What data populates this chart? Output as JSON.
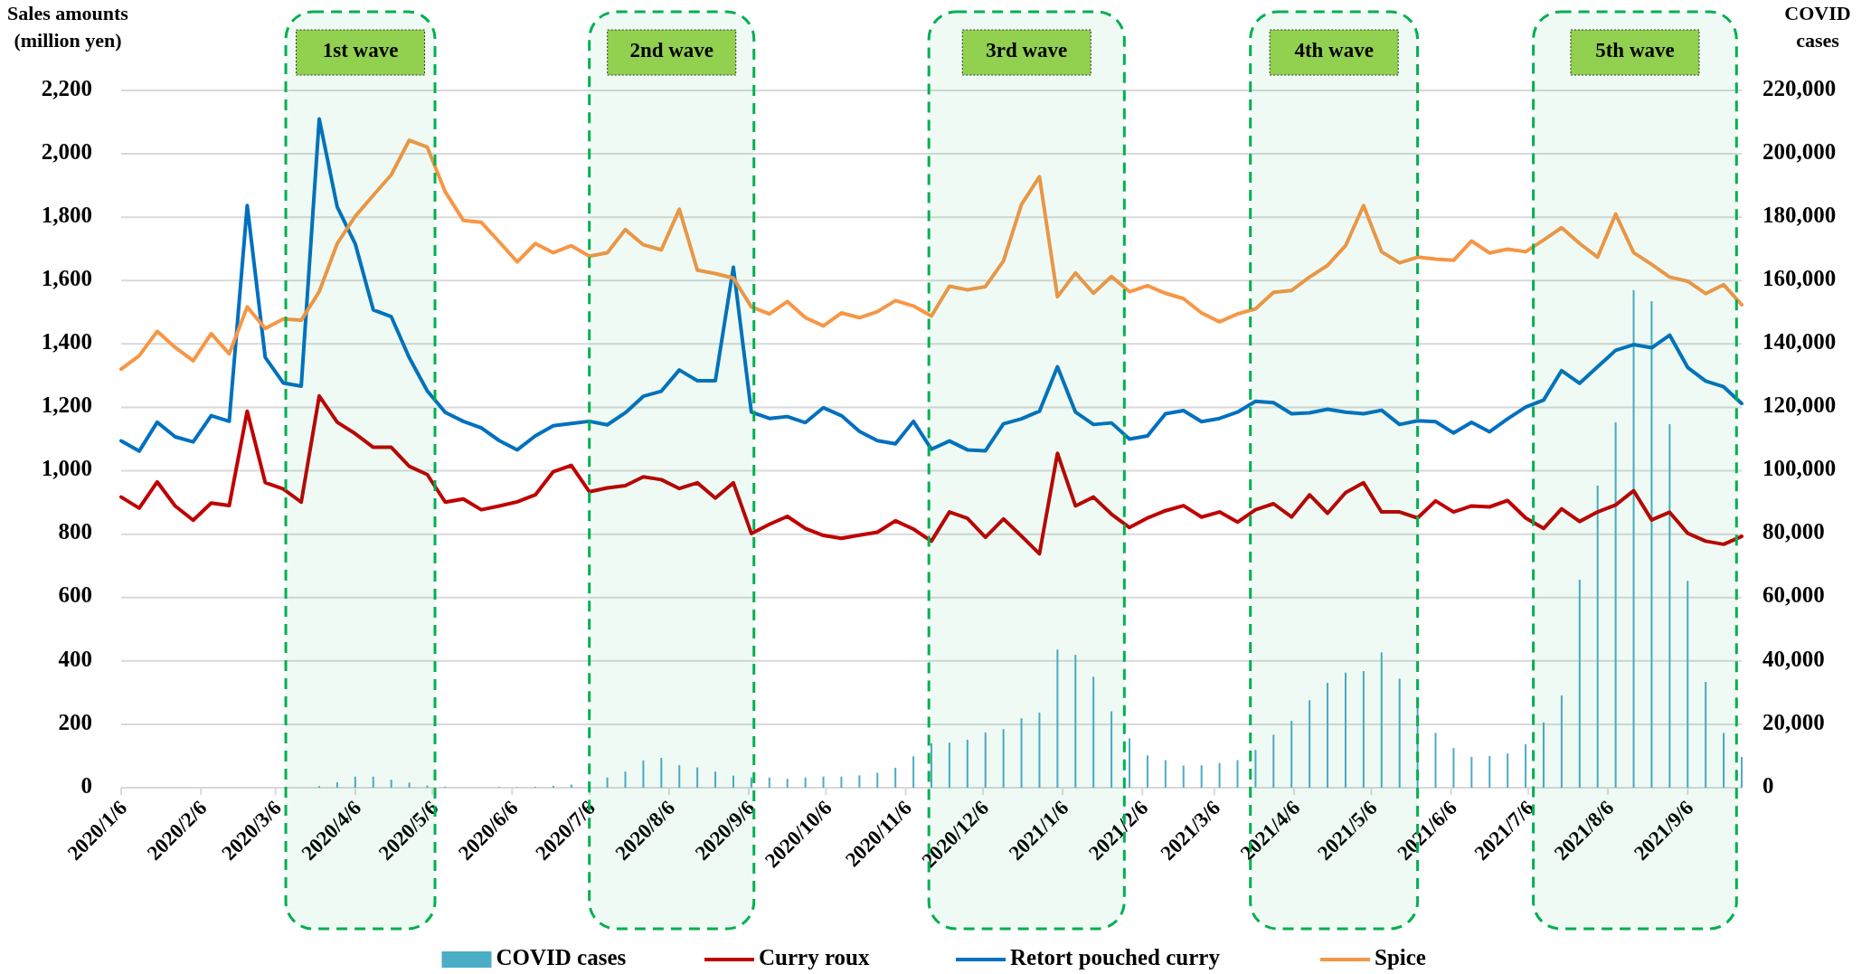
{
  "chart_data": {
    "type": "line",
    "xlabel": null,
    "ylabel": "Sales amounts (million yen)",
    "y2label": "COVID cases",
    "x": [
      "2020-01-06",
      "2020-01-13",
      "2020-01-20",
      "2020-01-27",
      "2020-02-03",
      "2020-02-10",
      "2020-02-17",
      "2020-02-24",
      "2020-03-02",
      "2020-03-09",
      "2020-03-16",
      "2020-03-23",
      "2020-03-30",
      "2020-04-06",
      "2020-04-13",
      "2020-04-20",
      "2020-04-27",
      "2020-05-04",
      "2020-05-11",
      "2020-05-18",
      "2020-05-25",
      "2020-06-01",
      "2020-06-08",
      "2020-06-15",
      "2020-06-22",
      "2020-06-29",
      "2020-07-06",
      "2020-07-13",
      "2020-07-20",
      "2020-07-27",
      "2020-08-03",
      "2020-08-10",
      "2020-08-17",
      "2020-08-24",
      "2020-08-31",
      "2020-09-07",
      "2020-09-14",
      "2020-09-21",
      "2020-09-28",
      "2020-10-05",
      "2020-10-12",
      "2020-10-19",
      "2020-10-26",
      "2020-11-02",
      "2020-11-09",
      "2020-11-16",
      "2020-11-23",
      "2020-11-30",
      "2020-12-07",
      "2020-12-14",
      "2020-12-21",
      "2020-12-28",
      "2021-01-04",
      "2021-01-11",
      "2021-01-18",
      "2021-01-25",
      "2021-02-01",
      "2021-02-08",
      "2021-02-15",
      "2021-02-22",
      "2021-03-01",
      "2021-03-08",
      "2021-03-15",
      "2021-03-22",
      "2021-03-29",
      "2021-04-05",
      "2021-04-12",
      "2021-04-19",
      "2021-04-26",
      "2021-05-03",
      "2021-05-10",
      "2021-05-17",
      "2021-05-24",
      "2021-05-31",
      "2021-06-07",
      "2021-06-14",
      "2021-06-21",
      "2021-06-28",
      "2021-07-05",
      "2021-07-12",
      "2021-07-19",
      "2021-07-26",
      "2021-08-02",
      "2021-08-09",
      "2021-08-16",
      "2021-08-23",
      "2021-08-30",
      "2021-09-06",
      "2021-09-13",
      "2021-09-20",
      "2021-09-27"
    ],
    "series": [
      {
        "name": "COVID cases",
        "type": "bar",
        "axis": "y2",
        "color": "#4bacc6",
        "values": [
          0,
          0,
          0,
          0,
          0,
          0,
          0,
          0,
          0,
          0,
          0,
          500,
          1700,
          3500,
          3500,
          2500,
          1600,
          700,
          300,
          null,
          null,
          200,
          200,
          300,
          600,
          1000,
          2000,
          3200,
          5100,
          8600,
          9400,
          7100,
          6400,
          5100,
          3800,
          3200,
          3200,
          2800,
          3200,
          3500,
          3500,
          3900,
          4700,
          6300,
          9900,
          14000,
          14200,
          15100,
          17400,
          18500,
          21900,
          23700,
          43600,
          41900,
          35000,
          24100,
          15600,
          10200,
          8700,
          7000,
          7100,
          7800,
          8700,
          11900,
          16700,
          21100,
          27600,
          33100,
          36300,
          36800,
          42700,
          34400,
          25400,
          17300,
          12500,
          9700,
          10000,
          10800,
          13700,
          20600,
          29100,
          65600,
          95300,
          115300,
          157000,
          153500,
          114700,
          65300,
          33400,
          17300,
          9700
        ]
      },
      {
        "name": "Curry roux",
        "color": "#c00000",
        "values": [
          917,
          882,
          965,
          889,
          844,
          898,
          890,
          1188,
          963,
          943,
          901,
          1236,
          1153,
          1117,
          1074,
          1074,
          1014,
          988,
          901,
          911,
          877,
          889,
          902,
          924,
          997,
          1017,
          934,
          946,
          953,
          981,
          972,
          944,
          962,
          914,
          962,
          802,
          831,
          856,
          818,
          796,
          787,
          797,
          806,
          842,
          816,
          778,
          870,
          850,
          790,
          848,
          794,
          738,
          1055,
          889,
          917,
          863,
          821,
          851,
          874,
          890,
          854,
          870,
          838,
          877,
          896,
          854,
          924,
          866,
          931,
          962,
          870,
          870,
          851,
          905,
          870,
          889,
          886,
          906,
          851,
          818,
          880,
          840,
          870,
          892,
          937,
          845,
          869,
          803,
          778,
          768,
          793
        ]
      },
      {
        "name": "Retort pouched curry",
        "color": "#0070c0",
        "values": [
          1094,
          1062,
          1153,
          1107,
          1091,
          1174,
          1156,
          1837,
          1358,
          1277,
          1267,
          2110,
          1832,
          1716,
          1508,
          1486,
          1357,
          1252,
          1184,
          1156,
          1135,
          1095,
          1066,
          1110,
          1142,
          1149,
          1156,
          1145,
          1183,
          1235,
          1251,
          1318,
          1284,
          1284,
          1642,
          1185,
          1165,
          1171,
          1152,
          1199,
          1174,
          1124,
          1095,
          1085,
          1156,
          1068,
          1094,
          1066,
          1063,
          1148,
          1164,
          1188,
          1328,
          1185,
          1146,
          1151,
          1100,
          1110,
          1180,
          1190,
          1155,
          1165,
          1185,
          1219,
          1215,
          1180,
          1183,
          1194,
          1185,
          1180,
          1191,
          1146,
          1158,
          1155,
          1119,
          1153,
          1123,
          1164,
          1201,
          1223,
          1316,
          1276,
          1328,
          1380,
          1398,
          1388,
          1428,
          1326,
          1283,
          1265,
          1212
        ]
      },
      {
        "name": "Spice",
        "color": "#f79646",
        "values": [
          1321,
          1363,
          1440,
          1389,
          1347,
          1433,
          1369,
          1517,
          1449,
          1479,
          1475,
          1565,
          1717,
          1803,
          1869,
          1934,
          2043,
          2021,
          1880,
          1790,
          1784,
          1722,
          1659,
          1717,
          1688,
          1710,
          1677,
          1688,
          1761,
          1713,
          1697,
          1825,
          1633,
          1622,
          1608,
          1517,
          1495,
          1534,
          1483,
          1457,
          1498,
          1483,
          1502,
          1537,
          1520,
          1488,
          1582,
          1571,
          1581,
          1662,
          1840,
          1928,
          1549,
          1624,
          1560,
          1613,
          1565,
          1584,
          1560,
          1543,
          1498,
          1470,
          1495,
          1511,
          1563,
          1569,
          1611,
          1648,
          1710,
          1837,
          1691,
          1656,
          1674,
          1668,
          1664,
          1725,
          1687,
          1699,
          1691,
          1728,
          1767,
          1717,
          1674,
          1810,
          1688,
          1651,
          1611,
          1598,
          1559,
          1587,
          1524
        ]
      }
    ],
    "xlim": [
      "2020-01-06",
      "2021-09-27"
    ],
    "xticks": [
      {
        "value": "2020-01-06",
        "label": "2020/1/6"
      },
      {
        "value": "2020-02-06",
        "label": "2020/2/6"
      },
      {
        "value": "2020-03-06",
        "label": "2020/3/6"
      },
      {
        "value": "2020-04-06",
        "label": "2020/4/6"
      },
      {
        "value": "2020-05-06",
        "label": "2020/5/6"
      },
      {
        "value": "2020-06-06",
        "label": "2020/6/6"
      },
      {
        "value": "2020-07-06",
        "label": "2020/7/6"
      },
      {
        "value": "2020-08-06",
        "label": "2020/8/6"
      },
      {
        "value": "2020-09-06",
        "label": "2020/9/6"
      },
      {
        "value": "2020-10-06",
        "label": "2020/10/6"
      },
      {
        "value": "2020-11-06",
        "label": "2020/11/6"
      },
      {
        "value": "2020-12-06",
        "label": "2020/12/6"
      },
      {
        "value": "2021-01-06",
        "label": "2021/1/6"
      },
      {
        "value": "2021-02-06",
        "label": "2021/2/6"
      },
      {
        "value": "2021-03-06",
        "label": "2021/3/6"
      },
      {
        "value": "2021-04-06",
        "label": "2021/4/6"
      },
      {
        "value": "2021-05-06",
        "label": "2021/5/6"
      },
      {
        "value": "2021-06-06",
        "label": "2021/6/6"
      },
      {
        "value": "2021-07-06",
        "label": "2021/7/6"
      },
      {
        "value": "2021-08-06",
        "label": "2021/8/6"
      },
      {
        "value": "2021-09-06",
        "label": "2021/9/6"
      }
    ],
    "ylim": [
      0,
      2200
    ],
    "yticks": [
      0,
      200,
      400,
      600,
      800,
      {
        "value": 1000,
        "label": "1,000"
      },
      {
        "value": 1200,
        "label": "1,200"
      },
      {
        "value": 1400,
        "label": "1,400"
      },
      {
        "value": 1600,
        "label": "1,600"
      },
      {
        "value": 1800,
        "label": "1,800"
      },
      {
        "value": 2000,
        "label": "2,000"
      },
      {
        "value": 2200,
        "label": "2,200"
      }
    ],
    "y2lim": [
      0,
      220000
    ],
    "y2ticks": [
      0,
      {
        "value": 20000,
        "label": "20,000"
      },
      {
        "value": 40000,
        "label": "40,000"
      },
      {
        "value": 60000,
        "label": "60,000"
      },
      {
        "value": 80000,
        "label": "80,000"
      },
      {
        "value": 100000,
        "label": "100,000"
      },
      {
        "value": 120000,
        "label": "120,000"
      },
      {
        "value": 140000,
        "label": "140,000"
      },
      {
        "value": 160000,
        "label": "160,000"
      },
      {
        "value": 180000,
        "label": "180,000"
      },
      {
        "value": 200000,
        "label": "200,000"
      },
      {
        "value": 220000,
        "label": "220,000"
      }
    ],
    "bands": [
      {
        "axis": "x",
        "from": "2020-03-10",
        "to": "2020-05-07",
        "label": "1st wave",
        "color": "#00b050"
      },
      {
        "axis": "x",
        "from": "2020-07-06",
        "to": "2020-09-08",
        "label": "2nd wave",
        "color": "#00b050"
      },
      {
        "axis": "x",
        "from": "2020-11-15",
        "to": "2021-01-30",
        "label": "3rd wave",
        "color": "#00b050"
      },
      {
        "axis": "x",
        "from": "2021-03-20",
        "to": "2021-05-24",
        "label": "4th wave",
        "color": "#00b050"
      },
      {
        "axis": "x",
        "from": "2021-07-08",
        "to": "2021-09-25",
        "label": "5th wave",
        "color": "#00b050"
      }
    ],
    "grid": "y",
    "legend": "bottom"
  }
}
